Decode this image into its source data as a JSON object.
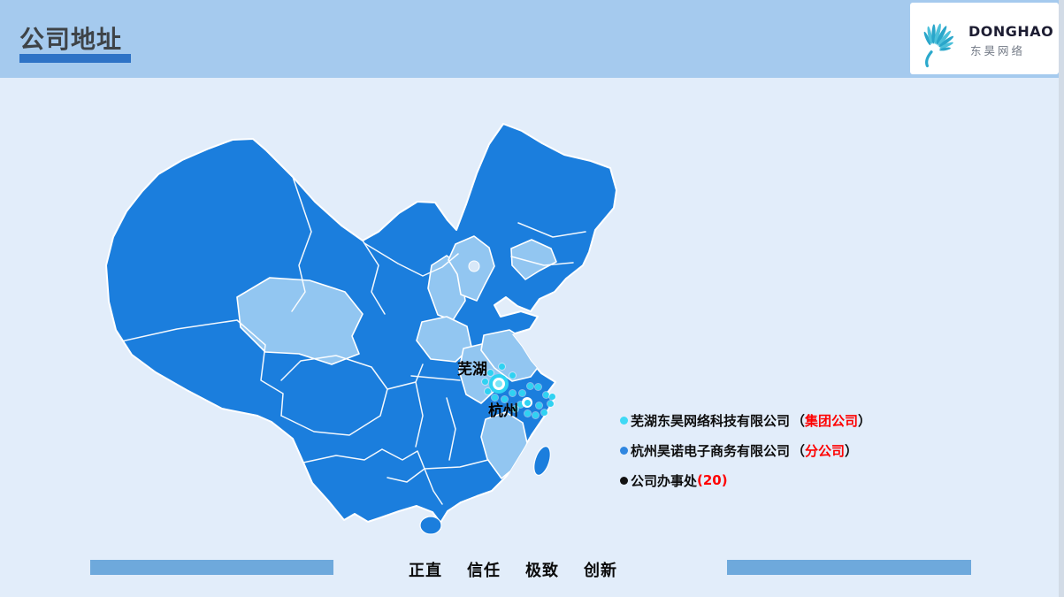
{
  "header": {
    "title": "公司地址"
  },
  "logo": {
    "name": "DONGHAO",
    "subtitle": "东昊网络"
  },
  "map": {
    "labels": [
      {
        "text": "芜湖"
      },
      {
        "text": "杭州"
      }
    ],
    "office_dots": [
      [
        567,
        414
      ],
      [
        554,
        421
      ],
      [
        548,
        431
      ],
      [
        551,
        442
      ],
      [
        559,
        449
      ],
      [
        570,
        451
      ],
      [
        579,
        444
      ],
      [
        579,
        424
      ],
      [
        590,
        444
      ],
      [
        599,
        436
      ],
      [
        608,
        437
      ],
      [
        617,
        446
      ],
      [
        622,
        456
      ],
      [
        615,
        466
      ],
      [
        605,
        469
      ],
      [
        596,
        467
      ],
      [
        588,
        457
      ],
      [
        609,
        458
      ],
      [
        624,
        448
      ],
      [
        582,
        462
      ]
    ]
  },
  "legend": {
    "items": [
      {
        "name": "芜湖东昊网络科技有限公司",
        "open": "（",
        "tag": "集团公司",
        "close": "）",
        "bullet_color": "#3fd9f5"
      },
      {
        "name": "杭州昊诺电子商务有限公司",
        "open": "（",
        "tag": "分公司",
        "close": "）",
        "bullet_color": "#2f86e0"
      },
      {
        "name": "公司办事处",
        "open": "",
        "tag": "(20)",
        "close": "",
        "bullet_color": "#111111"
      }
    ]
  },
  "footer": {
    "motto": [
      "正直",
      "信任",
      "极致",
      "创新"
    ]
  },
  "colors": {
    "header_bg": "#a5caee",
    "slide_bg": "#e2edfa",
    "province_dark": "#1b7edd",
    "province_light": "#92c6f1",
    "beijing_light": "#d8e8f8",
    "marker_cyan": "#2fd3f3",
    "highlight_red": "#fe0000",
    "bar_blue": "#6ea9dc",
    "title_underline": "#2e73c6",
    "logo_teal": "#2ba9cc"
  }
}
